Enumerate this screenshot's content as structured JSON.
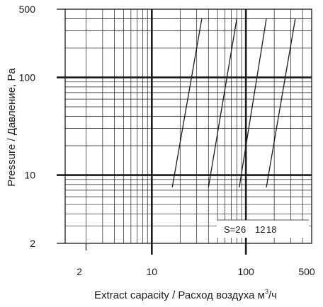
{
  "chart_data": {
    "type": "line",
    "xlabel": "Extract capacity / Расход воздуха м",
    "xlabel_sup": "3",
    "xlabel_tail": "/ч",
    "ylabel": "Pressure / Давление, Pa",
    "x_scale": "log",
    "y_scale": "log",
    "xlim": [
      1.2,
      500
    ],
    "ylim": [
      2,
      500
    ],
    "x_ticks": [
      2,
      10,
      100,
      500
    ],
    "y_ticks": [
      2,
      10,
      100,
      500
    ],
    "x_tick_labels": [
      "2",
      "10",
      "100",
      "500"
    ],
    "y_tick_labels": [
      "2",
      "10",
      "100",
      "500"
    ],
    "grid": true,
    "legend_text": [
      "S=2",
      "6",
      "12",
      "18"
    ],
    "series": [
      {
        "x": [
          16.5,
          34
        ],
        "y": [
          7.5,
          400
        ]
      },
      {
        "x": [
          40,
          80
        ],
        "y": [
          7.5,
          400
        ]
      },
      {
        "x": [
          85,
          165
        ],
        "y": [
          7.5,
          400
        ]
      },
      {
        "x": [
          165,
          335
        ],
        "y": [
          7.5,
          400
        ]
      }
    ],
    "colors": {
      "line": "#1a1a1a",
      "grid": "#1a1a1a",
      "background": "#ffffff"
    }
  }
}
